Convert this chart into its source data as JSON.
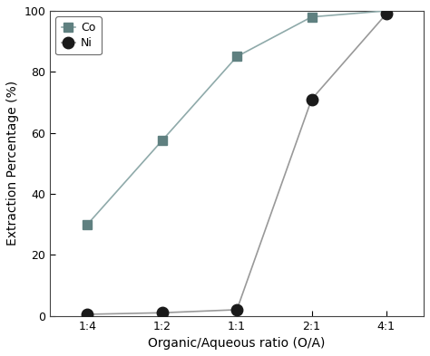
{
  "x_labels": [
    "1:4",
    "1:2",
    "1:1",
    "2:1",
    "4:1"
  ],
  "x_values": [
    0,
    1,
    2,
    3,
    4
  ],
  "co_values": [
    30,
    57.5,
    85,
    98,
    100
  ],
  "ni_values": [
    0.5,
    1.0,
    2.0,
    71,
    99
  ],
  "co_line_color": "#8faaaa",
  "co_marker_color": "#5f8080",
  "ni_line_color": "#999999",
  "ni_marker_color": "#1a1a1a",
  "co_label": "Co",
  "ni_label": "Ni",
  "co_marker": "s",
  "ni_marker": "o",
  "xlabel": "Organic/Aqueous ratio (O/A)",
  "ylabel": "Extraction Percentage (%)",
  "ylim": [
    0,
    100
  ],
  "yticks": [
    0,
    20,
    40,
    60,
    80,
    100
  ],
  "background_color": "#ffffff",
  "co_marker_size": 7,
  "ni_marker_size": 9,
  "linewidth": 1.2,
  "spine_color": "#444444",
  "tick_label_size": 9,
  "axis_label_size": 10
}
